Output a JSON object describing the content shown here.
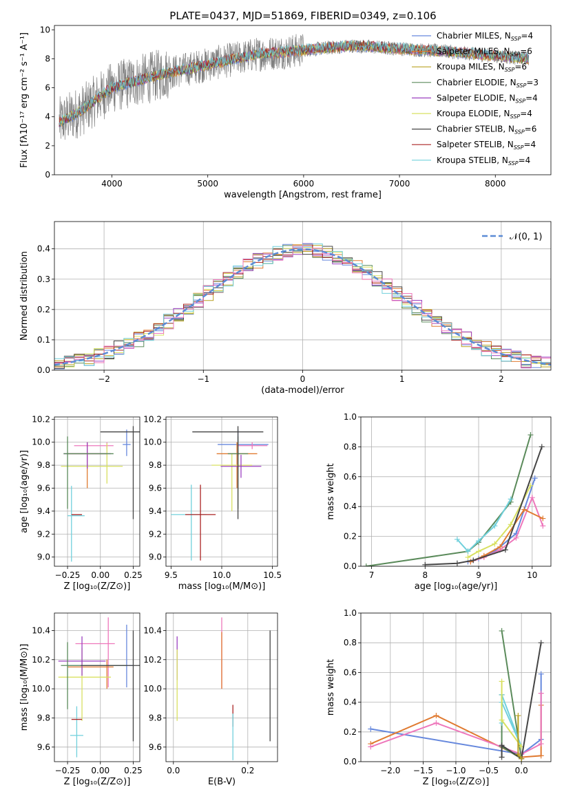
{
  "figure": {
    "title": "PLATE=0437, MJD=51869, FIBERID=0349, z=0.106"
  },
  "chart_data": [
    {
      "id": "spectrum",
      "type": "line",
      "xlabel": "wavelength [Angstrom, rest frame]",
      "ylabel": "Flux [fλ10⁻¹⁷ erg cm⁻² s⁻¹ A⁻¹]",
      "xlim": [
        3400,
        8580
      ],
      "ylim": [
        0,
        10.3
      ],
      "xticks": [
        4000,
        5000,
        6000,
        7000,
        8000
      ],
      "yticks": [
        0,
        2,
        4,
        6,
        8,
        10
      ],
      "legend": "right",
      "legend_entries": [
        {
          "label": "Chabrier MILES, N_SSP=4",
          "color": "#6688dd"
        },
        {
          "label": "Salpeter MILES, N_SSP=6",
          "color": "#e07a30"
        },
        {
          "label": "Kroupa MILES, N_SSP=6",
          "color": "#b8a020"
        },
        {
          "label": "Chabrier ELODIE, N_SSP=3",
          "color": "#5a8a5a"
        },
        {
          "label": "Salpeter ELODIE, N_SSP=4",
          "color": "#9b40c0"
        },
        {
          "label": "Kroupa ELODIE, N_SSP=4",
          "color": "#d8e060"
        },
        {
          "label": "Chabrier STELIB, N_SSP=6",
          "color": "#444444"
        },
        {
          "label": "Salpeter STELIB, N_SSP=4",
          "color": "#aa2222"
        },
        {
          "label": "Kroupa STELIB, N_SSP=4",
          "color": "#70d0dc"
        }
      ],
      "continuum": {
        "x": [
          3450,
          3700,
          4000,
          4500,
          5000,
          5500,
          6000,
          6500,
          7000,
          7500,
          8000,
          8350
        ],
        "y": [
          3.6,
          4.5,
          6.0,
          6.9,
          7.6,
          8.3,
          8.6,
          8.9,
          8.7,
          8.5,
          8.2,
          8.0
        ]
      },
      "data_color": "#7f7f7f"
    },
    {
      "id": "residuals",
      "type": "histogram",
      "xlabel": "(data-model)/error",
      "ylabel": "Normed distribution",
      "xlim": [
        -2.5,
        2.5
      ],
      "ylim": [
        0,
        0.49
      ],
      "xticks": [
        -2,
        -1,
        0,
        1,
        2
      ],
      "yticks": [
        0.0,
        0.1,
        0.2,
        0.3,
        0.4
      ],
      "legend_label": "𝒩(0, 1)",
      "legend": "top-right",
      "normal_color": "#5b8bd5"
    },
    {
      "id": "age-vs-Z",
      "type": "scatter",
      "xlabel": "Z [log₁₀(Z/Z⊙)]",
      "ylabel": "age  [log₁₀(age/yr)]",
      "xlim": [
        -0.35,
        0.3
      ],
      "ylim": [
        8.92,
        10.22
      ],
      "xticks": [
        -0.25,
        0.0,
        0.25
      ],
      "yticks": [
        9.0,
        9.2,
        9.4,
        9.6,
        9.8,
        10.0,
        10.2
      ],
      "points": [
        {
          "x": 0.2,
          "y": 9.98,
          "xerr": [
            0.03,
            0.03
          ],
          "yerr": [
            0.1,
            0.13
          ],
          "color": "#6688dd"
        },
        {
          "x": 0.05,
          "y": 9.97,
          "xerr": [
            0.25,
            0.05
          ],
          "yerr": [
            0.03,
            0.03
          ],
          "color": "#ee77bb"
        },
        {
          "x": -0.1,
          "y": 9.9,
          "xerr": [
            0.15,
            0.15
          ],
          "yerr": [
            0.3,
            0.1
          ],
          "color": "#e07a30"
        },
        {
          "x": 0.05,
          "y": 9.79,
          "xerr": [
            0.35,
            0.12
          ],
          "yerr": [
            0.15,
            0.2
          ],
          "color": "#d8e060"
        },
        {
          "x": -0.1,
          "y": 9.9,
          "xerr": [
            0.18,
            0.18
          ],
          "yerr": [
            0.13,
            0.1
          ],
          "color": "#9b40c0"
        },
        {
          "x": -0.25,
          "y": 9.9,
          "xerr": [
            0.03,
            0.35
          ],
          "yerr": [
            0.48,
            0.15
          ],
          "color": "#5a8a5a"
        },
        {
          "x": 0.25,
          "y": 10.09,
          "xerr": [
            0.25,
            0.05
          ],
          "yerr": [
            0.76,
            0.05
          ],
          "color": "#444444"
        },
        {
          "x": -0.22,
          "y": 9.36,
          "xerr": [
            0.03,
            0.1
          ],
          "yerr": [
            0.4,
            0.26
          ],
          "color": "#70d0dc"
        },
        {
          "x": -0.14,
          "y": 9.37,
          "xerr": [
            0.08,
            0.0
          ],
          "yerr": [
            0.0,
            0.0
          ],
          "color": "#aa2222"
        }
      ]
    },
    {
      "id": "age-vs-mass",
      "type": "scatter",
      "xlabel": "mass [log₁₀(M/M⊙)]",
      "ylabel": "",
      "xlim": [
        9.45,
        10.55
      ],
      "ylim": [
        8.92,
        10.22
      ],
      "xticks": [
        9.5,
        10.0,
        10.5
      ],
      "yticks": [
        9.0,
        9.2,
        9.4,
        9.6,
        9.8,
        10.0,
        10.2
      ],
      "points": [
        {
          "x": 10.16,
          "y": 9.98,
          "xerr": [
            0.2,
            0.3
          ],
          "yerr": [
            0.1,
            0.13
          ],
          "color": "#6688dd"
        },
        {
          "x": 10.3,
          "y": 9.97,
          "xerr": [
            0.15,
            0.15
          ],
          "yerr": [
            0.03,
            0.03
          ],
          "color": "#ee77bb"
        },
        {
          "x": 10.15,
          "y": 9.9,
          "xerr": [
            0.2,
            0.2
          ],
          "yerr": [
            0.3,
            0.1
          ],
          "color": "#e07a30"
        },
        {
          "x": 10.1,
          "y": 9.8,
          "xerr": [
            0.2,
            0.2
          ],
          "yerr": [
            0.4,
            0.1
          ],
          "color": "#d8e060"
        },
        {
          "x": 10.19,
          "y": 9.79,
          "xerr": [
            0.2,
            0.2
          ],
          "yerr": [
            0.1,
            0.1
          ],
          "color": "#9b40c0"
        },
        {
          "x": 10.16,
          "y": 9.9,
          "xerr": [
            0.1,
            0.1
          ],
          "yerr": [
            0.48,
            0.15
          ],
          "color": "#5a8a5a"
        },
        {
          "x": 10.16,
          "y": 10.09,
          "xerr": [
            0.45,
            0.25
          ],
          "yerr": [
            0.76,
            0.05
          ],
          "color": "#444444"
        },
        {
          "x": 9.7,
          "y": 9.37,
          "xerr": [
            0.2,
            0.15
          ],
          "yerr": [
            0.4,
            0.26
          ],
          "color": "#70d0dc"
        },
        {
          "x": 9.79,
          "y": 9.37,
          "xerr": [
            0.15,
            0.15
          ],
          "yerr": [
            0.4,
            0.26
          ],
          "color": "#aa2222"
        }
      ]
    },
    {
      "id": "mass-weight-vs-age",
      "type": "line",
      "xlabel": "age  [log₁₀(age/yr)]",
      "ylabel": "mass weight",
      "xlim": [
        6.8,
        10.35
      ],
      "ylim": [
        0,
        1.0
      ],
      "xticks": [
        7,
        8,
        9,
        10
      ],
      "yticks": [
        0.0,
        0.2,
        0.4,
        0.6,
        0.8,
        1.0
      ],
      "series": [
        {
          "color": "#5a8a5a",
          "x": [
            6.9,
            8.8,
            9.0,
            9.6,
            9.97
          ],
          "y": [
            0.0,
            0.1,
            0.16,
            0.43,
            0.88
          ]
        },
        {
          "color": "#6688dd",
          "x": [
            8.8,
            9.0,
            9.3,
            9.7,
            10.05
          ],
          "y": [
            0.03,
            0.05,
            0.1,
            0.22,
            0.59
          ]
        },
        {
          "color": "#70d0dc",
          "x": [
            8.6,
            8.8,
            9.0,
            9.3,
            9.6
          ],
          "y": [
            0.18,
            0.1,
            0.17,
            0.27,
            0.45
          ]
        },
        {
          "color": "#d8e060",
          "x": [
            8.8,
            9.0,
            9.3,
            9.6,
            9.97
          ],
          "y": [
            0.06,
            0.1,
            0.15,
            0.28,
            0.54
          ]
        },
        {
          "color": "#ee77bb",
          "x": [
            8.85,
            9.1,
            9.4,
            9.7,
            10.0,
            10.2
          ],
          "y": [
            0.03,
            0.06,
            0.11,
            0.19,
            0.46,
            0.27
          ]
        },
        {
          "color": "#e07a30",
          "x": [
            8.85,
            9.1,
            9.4,
            9.85,
            10.2
          ],
          "y": [
            0.03,
            0.07,
            0.13,
            0.38,
            0.32
          ]
        },
        {
          "color": "#444444",
          "x": [
            8.0,
            8.6,
            8.9,
            9.5,
            10.18
          ],
          "y": [
            0.01,
            0.02,
            0.04,
            0.11,
            0.8
          ]
        }
      ]
    },
    {
      "id": "mass-vs-Z",
      "type": "scatter",
      "xlabel": "Z [log₁₀(Z/Z⊙)]",
      "ylabel": "mass [log₁₀(M/M⊙)]",
      "xlim": [
        -0.35,
        0.3
      ],
      "ylim": [
        9.5,
        10.52
      ],
      "xticks": [
        -0.25,
        0.0,
        0.25
      ],
      "yticks": [
        9.6,
        9.8,
        10.0,
        10.2,
        10.4
      ],
      "points": [
        {
          "x": 0.2,
          "y": 10.16,
          "xerr": [
            0.45,
            0.05
          ],
          "yerr": [
            0.15,
            0.28
          ],
          "color": "#6688dd"
        },
        {
          "x": 0.06,
          "y": 10.31,
          "xerr": [
            0.25,
            0.05
          ],
          "yerr": [
            0.3,
            0.18
          ],
          "color": "#ee77bb"
        },
        {
          "x": 0.05,
          "y": 10.15,
          "xerr": [
            0.3,
            0.05
          ],
          "yerr": [
            0.15,
            0.05
          ],
          "color": "#e07a30"
        },
        {
          "x": -0.14,
          "y": 10.08,
          "xerr": [
            0.18,
            0.22
          ],
          "yerr": [
            0.3,
            0.2
          ],
          "color": "#d8e060"
        },
        {
          "x": -0.14,
          "y": 10.19,
          "xerr": [
            0.18,
            0.18
          ],
          "yerr": [
            0.1,
            0.17
          ],
          "color": "#9b40c0"
        },
        {
          "x": -0.25,
          "y": 10.16,
          "xerr": [
            0.05,
            0.45
          ],
          "yerr": [
            0.3,
            0.16
          ],
          "color": "#5a8a5a"
        },
        {
          "x": 0.25,
          "y": 10.16,
          "xerr": [
            0.4,
            0.05
          ],
          "yerr": [
            0.52,
            0.24
          ],
          "color": "#444444"
        },
        {
          "x": -0.18,
          "y": 9.68,
          "xerr": [
            0.05,
            0.05
          ],
          "yerr": [
            0.15,
            0.2
          ],
          "color": "#70d0dc"
        },
        {
          "x": -0.18,
          "y": 9.79,
          "xerr": [
            0.04,
            0.04
          ],
          "yerr": [
            0.0,
            0.0
          ],
          "color": "#aa2222"
        }
      ]
    },
    {
      "id": "mass-vs-EBV",
      "type": "scatter",
      "xlabel": "E(B-V)",
      "ylabel": "",
      "xlim": [
        -0.02,
        0.28
      ],
      "ylim": [
        9.5,
        10.52
      ],
      "xticks": [
        0.0,
        0.2
      ],
      "yticks": [
        9.6,
        9.8,
        10.0,
        10.2,
        10.4
      ],
      "points": [
        {
          "x": 0.01,
          "y": 10.16,
          "xerr": [
            0,
            0
          ],
          "yerr": [
            0.1,
            0.2
          ],
          "color": "#9b40c0"
        },
        {
          "x": 0.01,
          "y": 10.02,
          "xerr": [
            0,
            0
          ],
          "yerr": [
            0.24,
            0.25
          ],
          "color": "#d8e060"
        },
        {
          "x": 0.13,
          "y": 10.24,
          "xerr": [
            0,
            0
          ],
          "yerr": [
            0.24,
            0.25
          ],
          "color": "#ee77bb"
        },
        {
          "x": 0.13,
          "y": 10.19,
          "xerr": [
            0,
            0
          ],
          "yerr": [
            0.19,
            0.2
          ],
          "color": "#e07a30"
        },
        {
          "x": 0.16,
          "y": 9.79,
          "xerr": [
            0,
            0
          ],
          "yerr": [
            0.05,
            0.1
          ],
          "color": "#aa2222"
        },
        {
          "x": 0.16,
          "y": 9.68,
          "xerr": [
            0,
            0
          ],
          "yerr": [
            0.17,
            0.15
          ],
          "color": "#70d0dc"
        },
        {
          "x": 0.26,
          "y": 10.02,
          "xerr": [
            0,
            0
          ],
          "yerr": [
            0.38,
            0.38
          ],
          "color": "#444444"
        }
      ]
    },
    {
      "id": "mass-weight-vs-Z",
      "type": "line",
      "xlabel": "Z [log₁₀(Z/Z⊙)]",
      "ylabel": "mass weight",
      "xlim": [
        -2.45,
        0.45
      ],
      "ylim": [
        0,
        1.0
      ],
      "xticks": [
        -2.0,
        -1.5,
        -1.0,
        -0.5,
        0.0
      ],
      "yticks": [
        0.0,
        0.2,
        0.4,
        0.6,
        0.8,
        1.0
      ],
      "series": [
        {
          "color": "#6688dd",
          "x": [
            -2.3,
            0.0,
            0.3,
            0.3
          ],
          "y": [
            0.22,
            0.05,
            0.15,
            0.59
          ]
        },
        {
          "color": "#e07a30",
          "x": [
            -2.3,
            -1.3,
            0.0,
            0.3,
            0.3
          ],
          "y": [
            0.12,
            0.31,
            0.03,
            0.04,
            0.38
          ]
        },
        {
          "color": "#ee77bb",
          "x": [
            -2.3,
            -1.3,
            0.0,
            0.3,
            0.3
          ],
          "y": [
            0.1,
            0.26,
            0.05,
            0.12,
            0.46
          ]
        },
        {
          "color": "#5a8a5a",
          "x": [
            -0.3,
            0.0,
            -0.3,
            -0.3
          ],
          "y": [
            0.88,
            0.02,
            0.1,
            0.45
          ]
        },
        {
          "color": "#70d0dc",
          "x": [
            -0.3,
            -0.3,
            0.0,
            -0.3
          ],
          "y": [
            0.26,
            0.45,
            0.1,
            0.4
          ]
        },
        {
          "color": "#d8e060",
          "x": [
            -0.3,
            -0.3,
            0.0
          ],
          "y": [
            0.54,
            0.28,
            0.1
          ]
        },
        {
          "color": "#444444",
          "x": [
            -0.3,
            -0.3,
            0.0,
            0.3
          ],
          "y": [
            0.03,
            0.11,
            0.02,
            0.8
          ]
        },
        {
          "color": "#b8a020",
          "x": [
            -0.05,
            -0.05,
            0.0
          ],
          "y": [
            0.31,
            0.05,
            0.02
          ]
        }
      ]
    }
  ]
}
